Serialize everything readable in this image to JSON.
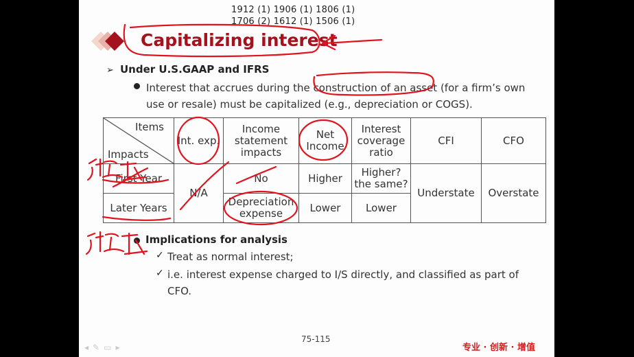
{
  "ref_numbers": [
    "1912 (1) 1906 (1) 1806 (1)",
    "1706 (2) 1612 (1) 1506 (1)"
  ],
  "title": "Capitalizing interest",
  "subheading": "Under U.S.GAAP and IFRS",
  "bullet_text": "Interest that accrues during the construction of an asset (for a firm’s own use or resale) must be capitalized (e.g., depreciation or COGS).",
  "table": {
    "corner_top": "Items",
    "corner_bottom": "Impacts",
    "headers": [
      "Int. exp.",
      "Income statement impacts",
      "Net Income",
      "Interest coverage ratio",
      "CFI",
      "CFO"
    ],
    "rows": [
      {
        "label": "First Year",
        "int_exp": "N/A",
        "income_statement": "No",
        "net_income": "Higher",
        "coverage": "Higher? the same?"
      },
      {
        "label": "Later Years",
        "income_statement": "Depreciation expense",
        "net_income": "Lower",
        "coverage": "Lower"
      }
    ],
    "cfi": "Understate",
    "cfo": "Overstate"
  },
  "implications": {
    "heading": "Implications for analysis",
    "items": [
      "Treat as normal interest;",
      "i.e. interest expense charged to I/S directly, and classified as part of CFO."
    ]
  },
  "page_number": "75-115",
  "slogan": "专业 · 创新 · 增值",
  "player_controls": [
    "prev-icon",
    "pen-icon",
    "menu-icon",
    "next-icon"
  ],
  "colors": {
    "title": "#a4121e",
    "ink": "#e0141e",
    "diamond_dark": "#a4121e",
    "diamond_light": "#e8b2a8"
  }
}
